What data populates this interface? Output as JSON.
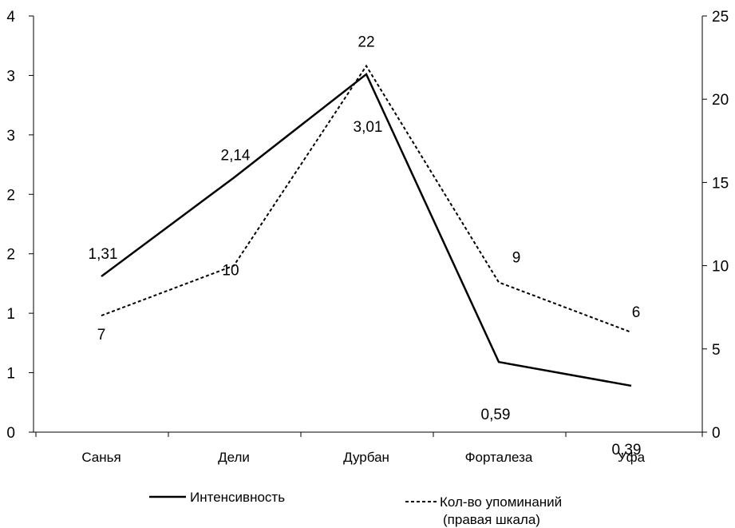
{
  "chart_data": {
    "type": "line",
    "categories": [
      "Санья",
      "Дели",
      "Дурбан",
      "Форталеза",
      "Уфа"
    ],
    "left_axis": {
      "tick_labels": [
        "0",
        "1",
        "1",
        "2",
        "2",
        "3",
        "3",
        "4"
      ],
      "tick_values": [
        0,
        0.5,
        1,
        1.5,
        2,
        2.5,
        3,
        3.5
      ],
      "ylim": [
        0,
        3.5
      ]
    },
    "right_axis": {
      "tick_labels": [
        "0",
        "5",
        "10",
        "15",
        "20",
        "25"
      ],
      "tick_values": [
        0,
        5,
        10,
        15,
        20,
        25
      ],
      "ylim": [
        0,
        25
      ]
    },
    "series": [
      {
        "name": "Интенсивность",
        "axis": "left",
        "style": "solid",
        "values": [
          1.31,
          2.14,
          3.01,
          0.59,
          0.39
        ],
        "labels": [
          "1,31",
          "2,14",
          "3,01",
          "0,59",
          "0,39"
        ]
      },
      {
        "name": "Кол-во упоминаний",
        "name_line2": "(правая шкала)",
        "axis": "right",
        "style": "dashed",
        "values": [
          7,
          10,
          22,
          9,
          6
        ],
        "labels": [
          "7",
          "10",
          "22",
          "9",
          "6"
        ]
      }
    ],
    "grid": false,
    "legend_position": "bottom",
    "colors": {
      "line": "#000000",
      "axis": "#000000"
    }
  }
}
